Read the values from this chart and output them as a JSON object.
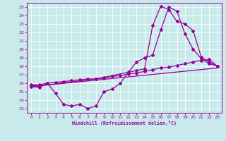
{
  "xlabel": "Windchill (Refroidissement éolien,°C)",
  "bg_color": "#c8eaea",
  "grid_color": "#b8d8d8",
  "line_color": "#990099",
  "xlim": [
    -0.5,
    23.5
  ],
  "ylim": [
    12.5,
    25.5
  ],
  "xticks": [
    0,
    1,
    2,
    3,
    4,
    5,
    6,
    7,
    8,
    9,
    10,
    11,
    12,
    13,
    14,
    15,
    16,
    17,
    18,
    19,
    20,
    21,
    22,
    23
  ],
  "yticks": [
    13,
    14,
    15,
    16,
    17,
    18,
    19,
    20,
    21,
    22,
    23,
    24,
    25
  ],
  "curve1_x": [
    0,
    1,
    2,
    3,
    4,
    5,
    6,
    7,
    8,
    9,
    10,
    11,
    12,
    13,
    14,
    15,
    16,
    17,
    18,
    19,
    20,
    21,
    22,
    23
  ],
  "curve1_y": [
    15.6,
    15.5,
    16.0,
    14.8,
    13.5,
    13.3,
    13.5,
    13.0,
    13.3,
    15.0,
    15.3,
    16.0,
    17.3,
    18.5,
    19.0,
    19.3,
    22.3,
    25.0,
    24.5,
    21.8,
    20.0,
    18.9,
    18.3,
    18.0
  ],
  "curve2_x": [
    0,
    1,
    2,
    3,
    4,
    5,
    6,
    7,
    8,
    9,
    10,
    11,
    12,
    13,
    14,
    15,
    16,
    17,
    18,
    19,
    20,
    21,
    22,
    23
  ],
  "curve2_y": [
    15.8,
    15.8,
    16.0,
    16.1,
    16.2,
    16.3,
    16.4,
    16.5,
    16.5,
    16.6,
    16.8,
    16.9,
    17.1,
    17.2,
    17.4,
    17.6,
    17.8,
    17.9,
    18.1,
    18.3,
    18.5,
    18.7,
    18.8,
    18.0
  ],
  "curve3_x": [
    0,
    23
  ],
  "curve3_y": [
    15.6,
    17.8
  ],
  "curve4_x": [
    0,
    1,
    8,
    9,
    13,
    14,
    15,
    16,
    17,
    18,
    19,
    20,
    21,
    22,
    23
  ],
  "curve4_y": [
    15.7,
    15.7,
    16.5,
    16.7,
    17.5,
    17.7,
    22.8,
    25.1,
    24.7,
    23.3,
    23.0,
    22.2,
    19.1,
    18.5,
    18.0
  ]
}
